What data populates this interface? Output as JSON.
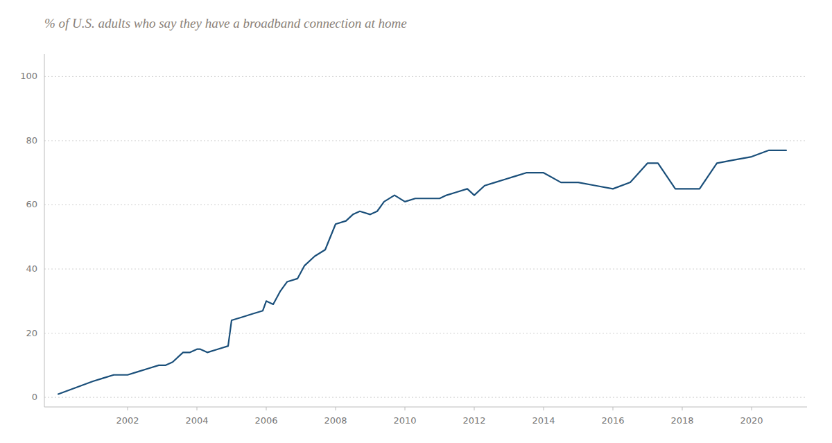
{
  "chart_data": {
    "type": "line",
    "title": "% of U.S. adults who say they have a broadband connection at home",
    "color": "#1a4f7a",
    "x": [
      2000.0,
      2000.5,
      2001.0,
      2001.3,
      2001.6,
      2002.0,
      2002.3,
      2002.6,
      2002.9,
      2003.1,
      2003.3,
      2003.6,
      2003.8,
      2004.0,
      2004.1,
      2004.3,
      2004.6,
      2004.9,
      2005.0,
      2005.3,
      2005.6,
      2005.9,
      2006.0,
      2006.2,
      2006.4,
      2006.6,
      2006.9,
      2007.1,
      2007.4,
      2007.7,
      2008.0,
      2008.3,
      2008.5,
      2008.7,
      2009.0,
      2009.2,
      2009.4,
      2009.7,
      2010.0,
      2010.3,
      2010.6,
      2011.0,
      2011.2,
      2011.5,
      2011.8,
      2012.0,
      2012.3,
      2012.6,
      2012.9,
      2013.2,
      2013.5,
      2014.0,
      2014.5,
      2015.0,
      2015.5,
      2016.0,
      2016.5,
      2017.0,
      2017.3,
      2017.8,
      2018.0,
      2018.5,
      2019.0,
      2019.5,
      2020.0,
      2020.5,
      2021.0
    ],
    "values": [
      1,
      3,
      5,
      6,
      7,
      7,
      8,
      9,
      10,
      10,
      11,
      14,
      14,
      15,
      15,
      14,
      15,
      16,
      24,
      25,
      26,
      27,
      30,
      29,
      33,
      36,
      37,
      41,
      44,
      46,
      54,
      55,
      57,
      58,
      57,
      58,
      61,
      63,
      61,
      62,
      62,
      62,
      63,
      64,
      65,
      63,
      66,
      67,
      68,
      69,
      70,
      70,
      67,
      67,
      66,
      65,
      67,
      73,
      73,
      65,
      65,
      65,
      73,
      74,
      75,
      77,
      77
    ],
    "xlim": [
      1999.6,
      2021.6
    ],
    "ylim": [
      -3,
      107
    ],
    "xticks": [
      2002,
      2004,
      2006,
      2008,
      2010,
      2012,
      2014,
      2016,
      2018,
      2020
    ],
    "yticks": [
      0,
      20,
      40,
      60,
      80,
      100
    ],
    "grid": true
  }
}
